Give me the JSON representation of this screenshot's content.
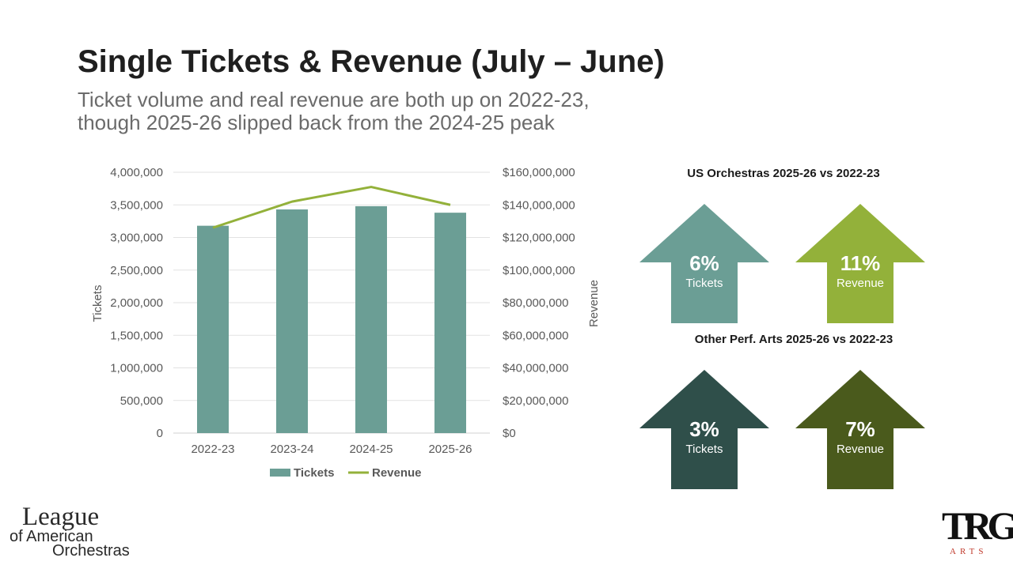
{
  "slide": {
    "title": "Single Tickets & Revenue (July – June)",
    "subtitle_line1": "Ticket volume and real revenue are both up on 2022-23,",
    "subtitle_line2": "though 2025-26 slipped back from the 2024-25 peak"
  },
  "chart_data": {
    "type": "bar",
    "categories": [
      "2022-23",
      "2023-24",
      "2024-25",
      "2025-26"
    ],
    "series": [
      {
        "name": "Tickets",
        "type": "bar",
        "axis": "left",
        "values": [
          3180000,
          3430000,
          3480000,
          3380000
        ],
        "color": "#6b9e95"
      },
      {
        "name": "Revenue",
        "type": "line",
        "axis": "right",
        "values": [
          126000000,
          142000000,
          151000000,
          140000000
        ],
        "color": "#93b13a"
      }
    ],
    "ylabel": "Tickets",
    "y2label": "Revenue",
    "ylim": [
      0,
      4000000
    ],
    "y2lim": [
      0,
      160000000
    ],
    "yticks": [
      "0",
      "500,000",
      "1,000,000",
      "1,500,000",
      "2,000,000",
      "2,500,000",
      "3,000,000",
      "3,500,000",
      "4,000,000"
    ],
    "y2ticks": [
      "$0",
      "$20,000,000",
      "$40,000,000",
      "$60,000,000",
      "$80,000,000",
      "$100,000,000",
      "$120,000,000",
      "$140,000,000",
      "$160,000,000"
    ],
    "grid": true,
    "legend": "bottom"
  },
  "comparisons": {
    "us": {
      "heading": "US Orchestras 2025-26 vs 2022-23",
      "tickets": {
        "pct": "6%",
        "label": "Tickets",
        "color": "#6b9e95"
      },
      "revenue": {
        "pct": "11%",
        "label": "Revenue",
        "color": "#93b13a"
      }
    },
    "other": {
      "heading": "Other Perf. Arts 2025-26 vs 2022-23",
      "tickets": {
        "pct": "3%",
        "label": "Tickets",
        "color": "#2f4f4a"
      },
      "revenue": {
        "pct": "7%",
        "label": "Revenue",
        "color": "#4a5a1c"
      }
    }
  },
  "logos": {
    "league": {
      "line1": "League",
      "line2": "of American",
      "line3": "Orchestras"
    },
    "trg": {
      "mark": "TRG",
      "sub": "ARTS"
    }
  }
}
